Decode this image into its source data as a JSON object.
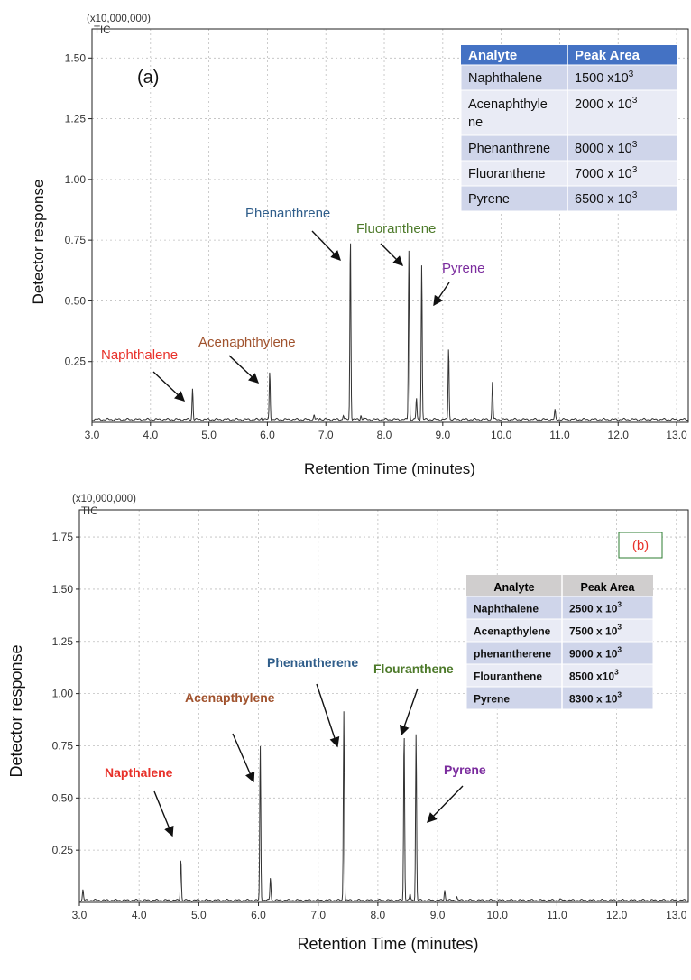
{
  "chart_data": [
    {
      "type": "line",
      "panel_label": "(a)",
      "scale_label": "(x10,000,000)",
      "trace_label": "TIC",
      "xlabel": "Retention Time (minutes)",
      "ylabel": "Detector response",
      "xlim": [
        3.0,
        13.2
      ],
      "ylim": [
        0,
        1.62
      ],
      "xticks": [
        "3.0",
        "4.0",
        "5.0",
        "6.0",
        "7.0",
        "8.0",
        "9.0",
        "10.0",
        "11.0",
        "12.0",
        "13.0"
      ],
      "yticks": [
        "0.25",
        "0.50",
        "0.75",
        "1.00",
        "1.25",
        "1.50"
      ],
      "baseline": 0.012,
      "peaks": [
        {
          "x": 4.72,
          "y": 0.14
        },
        {
          "x": 5.9,
          "y": 0.02
        },
        {
          "x": 6.04,
          "y": 0.21
        },
        {
          "x": 6.8,
          "y": 0.03
        },
        {
          "x": 6.9,
          "y": 0.02
        },
        {
          "x": 7.3,
          "y": 0.03
        },
        {
          "x": 7.42,
          "y": 0.77
        },
        {
          "x": 7.6,
          "y": 0.03
        },
        {
          "x": 7.65,
          "y": 0.02
        },
        {
          "x": 8.42,
          "y": 0.71
        },
        {
          "x": 8.55,
          "y": 0.1
        },
        {
          "x": 8.64,
          "y": 0.65
        },
        {
          "x": 9.1,
          "y": 0.31
        },
        {
          "x": 9.85,
          "y": 0.17
        },
        {
          "x": 10.92,
          "y": 0.05
        }
      ],
      "annotations": [
        {
          "text": "Naphthalene",
          "color": "#e8312a"
        },
        {
          "text": "Acenaphthylene",
          "color": "#a0522d"
        },
        {
          "text": "Phenanthrene",
          "color": "#2f5d8a"
        },
        {
          "text": "Fluoranthene",
          "color": "#4d7a2a"
        },
        {
          "text": "Pyrene",
          "color": "#7b2c9e"
        }
      ],
      "table": {
        "headers": [
          "Analyte",
          "Peak Area"
        ],
        "rows": [
          {
            "analyte": "Naphthalene",
            "area": "1500 x10",
            "exp": "3"
          },
          {
            "analyte": "Acenaphthyle ne",
            "area": "2000 x 10",
            "exp": "3"
          },
          {
            "analyte": "Phenanthrene",
            "area": "8000 x 10",
            "exp": "3"
          },
          {
            "analyte": "Fluoranthene",
            "area": "7000 x 10",
            "exp": "3"
          },
          {
            "analyte": "Pyrene",
            "area": "6500 x 10",
            "exp": "3"
          }
        ]
      },
      "grid": true
    },
    {
      "type": "line",
      "panel_label": "(b)",
      "scale_label": "(x10,000,000)",
      "trace_label": "TIC",
      "xlabel": "Retention Time (minutes)",
      "ylabel": "Detector response",
      "xlim": [
        3.0,
        13.2
      ],
      "ylim": [
        0,
        1.88
      ],
      "xticks": [
        "3.0",
        "4.0",
        "5.0",
        "6.0",
        "7.0",
        "8.0",
        "9.0",
        "10.0",
        "11.0",
        "12.0",
        "13.0"
      ],
      "yticks": [
        "0.25",
        "0.50",
        "0.75",
        "1.00",
        "1.25",
        "1.50",
        "1.75"
      ],
      "baseline": 0.01,
      "peaks": [
        {
          "x": 3.06,
          "y": 0.06
        },
        {
          "x": 4.7,
          "y": 0.21
        },
        {
          "x": 6.03,
          "y": 0.75
        },
        {
          "x": 6.2,
          "y": 0.12
        },
        {
          "x": 7.43,
          "y": 0.92
        },
        {
          "x": 8.44,
          "y": 0.82
        },
        {
          "x": 8.54,
          "y": 0.04
        },
        {
          "x": 8.64,
          "y": 0.81
        },
        {
          "x": 9.12,
          "y": 0.06
        },
        {
          "x": 9.32,
          "y": 0.03
        },
        {
          "x": 11.05,
          "y": 0.015
        }
      ],
      "annotations": [
        {
          "text": "Napthalene",
          "color": "#e8312a"
        },
        {
          "text": "Acenapthylene",
          "color": "#a0522d"
        },
        {
          "text": "Phenantherene",
          "color": "#2f5d8a"
        },
        {
          "text": "Flouranthene",
          "color": "#4d7a2a"
        },
        {
          "text": "Pyrene",
          "color": "#7b2c9e"
        }
      ],
      "table": {
        "headers": [
          "Analyte",
          "Peak Area"
        ],
        "rows": [
          {
            "analyte": "Naphthalene",
            "area": "2500 x 10",
            "exp": "3"
          },
          {
            "analyte": "Acenapthylene",
            "area": "7500 x 10",
            "exp": "3"
          },
          {
            "analyte": "phenantherene",
            "area": "9000 x 10",
            "exp": "3"
          },
          {
            "analyte": "Flouranthene",
            "area": "8500 x10",
            "exp": "3"
          },
          {
            "analyte": "Pyrene",
            "area": "8300 x 10",
            "exp": "3"
          }
        ]
      },
      "grid": true
    }
  ]
}
